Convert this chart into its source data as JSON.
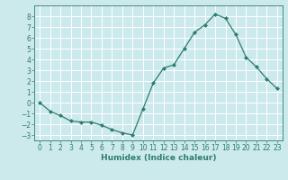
{
  "x": [
    0,
    1,
    2,
    3,
    4,
    5,
    6,
    7,
    8,
    9,
    10,
    11,
    12,
    13,
    14,
    15,
    16,
    17,
    18,
    19,
    20,
    21,
    22,
    23
  ],
  "y": [
    0,
    -0.8,
    -1.2,
    -1.7,
    -1.8,
    -1.8,
    -2.1,
    -2.5,
    -2.8,
    -3.0,
    -0.6,
    1.8,
    3.2,
    3.5,
    5.0,
    6.5,
    7.2,
    8.2,
    7.8,
    6.3,
    4.2,
    3.3,
    2.2,
    1.3
  ],
  "line_color": "#2e7d6e",
  "marker": "D",
  "marker_size": 2,
  "bg_color": "#cce9eb",
  "grid_color": "#ffffff",
  "axis_color": "#2e7d6e",
  "text_color": "#2e7d6e",
  "xlabel": "Humidex (Indice chaleur)",
  "ylim": [
    -3.5,
    9.0
  ],
  "xlim": [
    -0.5,
    23.5
  ],
  "yticks": [
    -3,
    -2,
    -1,
    0,
    1,
    2,
    3,
    4,
    5,
    6,
    7,
    8
  ],
  "xticks": [
    0,
    1,
    2,
    3,
    4,
    5,
    6,
    7,
    8,
    9,
    10,
    11,
    12,
    13,
    14,
    15,
    16,
    17,
    18,
    19,
    20,
    21,
    22,
    23
  ],
  "xlabel_fontsize": 6.5,
  "tick_fontsize": 5.5
}
